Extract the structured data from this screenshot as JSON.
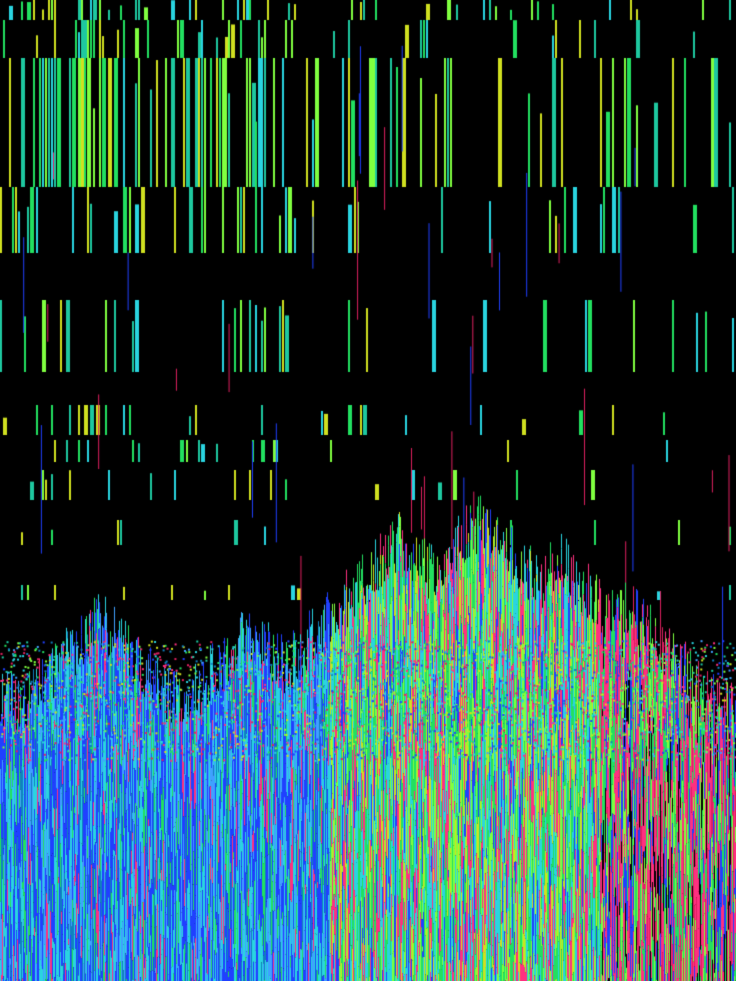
{
  "artwork": {
    "background": "#000000",
    "palette": [
      "#2ad4e0",
      "#22e060",
      "#1ec8a0",
      "#2040ff",
      "#ff3080",
      "#d0e020",
      "#40a0ff",
      "#80ff40",
      "#1080c0",
      "#e02060"
    ]
  }
}
